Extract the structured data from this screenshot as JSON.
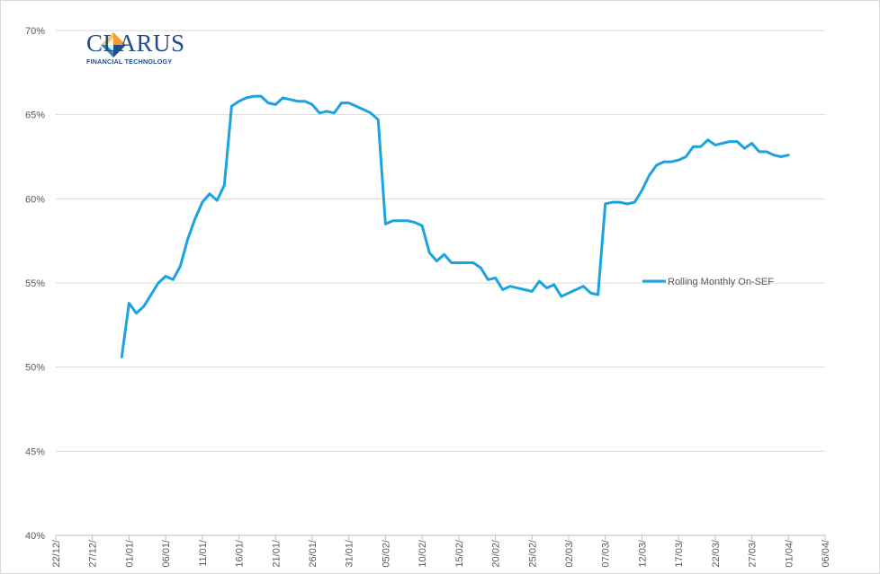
{
  "logo": {
    "name": "CLARUS",
    "tagline": "FINANCIAL TECHNOLOGY",
    "colors": {
      "blue": "#1f4e8c",
      "orange": "#f0a030",
      "teal": "#2e8fb0"
    }
  },
  "chart_data": {
    "type": "line",
    "title": "",
    "xlabel": "",
    "ylabel": "",
    "ylim": [
      0.4,
      0.7
    ],
    "y_ticks": [
      "40%",
      "45%",
      "50%",
      "55%",
      "60%",
      "65%",
      "70%"
    ],
    "y_tick_values": [
      0.4,
      0.45,
      0.5,
      0.55,
      0.6,
      0.65,
      0.7
    ],
    "x_tick_labels": [
      "22/12/",
      "27/12/",
      "01/01/",
      "06/01/",
      "11/01/",
      "16/01/",
      "21/01/",
      "26/01/",
      "31/01/",
      "05/02/",
      "10/02/",
      "15/02/",
      "20/02/",
      "25/02/",
      "02/03/",
      "07/03/",
      "12/03/",
      "17/03/",
      "22/03/",
      "27/03/",
      "01/04/",
      "06/04/"
    ],
    "x_tick_dates": [
      "2014-12-22",
      "2014-12-27",
      "2015-01-01",
      "2015-01-06",
      "2015-01-11",
      "2015-01-16",
      "2015-01-21",
      "2015-01-26",
      "2015-01-31",
      "2015-02-05",
      "2015-02-10",
      "2015-02-15",
      "2015-02-20",
      "2015-02-25",
      "2015-03-02",
      "2015-03-07",
      "2015-03-12",
      "2015-03-17",
      "2015-03-22",
      "2015-03-27",
      "2015-04-01",
      "2015-04-06"
    ],
    "grid": true,
    "legend_position": "right",
    "series": [
      {
        "name": "Rolling Monthly On-SEF",
        "color": "#1aa3e0",
        "points": [
          [
            "2014-12-31",
            0.506
          ],
          [
            "2015-01-01",
            0.538
          ],
          [
            "2015-01-02",
            0.532
          ],
          [
            "2015-01-03",
            0.536
          ],
          [
            "2015-01-04",
            0.543
          ],
          [
            "2015-01-05",
            0.55
          ],
          [
            "2015-01-06",
            0.554
          ],
          [
            "2015-01-07",
            0.552
          ],
          [
            "2015-01-08",
            0.56
          ],
          [
            "2015-01-09",
            0.576
          ],
          [
            "2015-01-10",
            0.588
          ],
          [
            "2015-01-11",
            0.598
          ],
          [
            "2015-01-12",
            0.603
          ],
          [
            "2015-01-13",
            0.599
          ],
          [
            "2015-01-14",
            0.608
          ],
          [
            "2015-01-15",
            0.655
          ],
          [
            "2015-01-16",
            0.658
          ],
          [
            "2015-01-17",
            0.66
          ],
          [
            "2015-01-18",
            0.661
          ],
          [
            "2015-01-19",
            0.661
          ],
          [
            "2015-01-20",
            0.657
          ],
          [
            "2015-01-21",
            0.656
          ],
          [
            "2015-01-22",
            0.66
          ],
          [
            "2015-01-23",
            0.659
          ],
          [
            "2015-01-24",
            0.658
          ],
          [
            "2015-01-25",
            0.658
          ],
          [
            "2015-01-26",
            0.656
          ],
          [
            "2015-01-27",
            0.651
          ],
          [
            "2015-01-28",
            0.652
          ],
          [
            "2015-01-29",
            0.651
          ],
          [
            "2015-01-30",
            0.657
          ],
          [
            "2015-01-31",
            0.657
          ],
          [
            "2015-02-01",
            0.655
          ],
          [
            "2015-02-02",
            0.653
          ],
          [
            "2015-02-03",
            0.651
          ],
          [
            "2015-02-04",
            0.647
          ],
          [
            "2015-02-05",
            0.585
          ],
          [
            "2015-02-06",
            0.587
          ],
          [
            "2015-02-07",
            0.587
          ],
          [
            "2015-02-08",
            0.587
          ],
          [
            "2015-02-09",
            0.586
          ],
          [
            "2015-02-10",
            0.584
          ],
          [
            "2015-02-11",
            0.568
          ],
          [
            "2015-02-12",
            0.563
          ],
          [
            "2015-02-13",
            0.567
          ],
          [
            "2015-02-14",
            0.562
          ],
          [
            "2015-02-15",
            0.562
          ],
          [
            "2015-02-16",
            0.562
          ],
          [
            "2015-02-17",
            0.562
          ],
          [
            "2015-02-18",
            0.559
          ],
          [
            "2015-02-19",
            0.552
          ],
          [
            "2015-02-20",
            0.553
          ],
          [
            "2015-02-21",
            0.546
          ],
          [
            "2015-02-22",
            0.548
          ],
          [
            "2015-02-23",
            0.547
          ],
          [
            "2015-02-24",
            0.546
          ],
          [
            "2015-02-25",
            0.545
          ],
          [
            "2015-02-26",
            0.551
          ],
          [
            "2015-02-27",
            0.547
          ],
          [
            "2015-02-28",
            0.549
          ],
          [
            "2015-03-01",
            0.542
          ],
          [
            "2015-03-02",
            0.544
          ],
          [
            "2015-03-03",
            0.546
          ],
          [
            "2015-03-04",
            0.548
          ],
          [
            "2015-03-05",
            0.544
          ],
          [
            "2015-03-06",
            0.543
          ],
          [
            "2015-03-07",
            0.597
          ],
          [
            "2015-03-08",
            0.598
          ],
          [
            "2015-03-09",
            0.598
          ],
          [
            "2015-03-10",
            0.597
          ],
          [
            "2015-03-11",
            0.598
          ],
          [
            "2015-03-12",
            0.605
          ],
          [
            "2015-03-13",
            0.614
          ],
          [
            "2015-03-14",
            0.62
          ],
          [
            "2015-03-15",
            0.622
          ],
          [
            "2015-03-16",
            0.622
          ],
          [
            "2015-03-17",
            0.623
          ],
          [
            "2015-03-18",
            0.625
          ],
          [
            "2015-03-19",
            0.631
          ],
          [
            "2015-03-20",
            0.631
          ],
          [
            "2015-03-21",
            0.635
          ],
          [
            "2015-03-22",
            0.632
          ],
          [
            "2015-03-23",
            0.633
          ],
          [
            "2015-03-24",
            0.634
          ],
          [
            "2015-03-25",
            0.634
          ],
          [
            "2015-03-26",
            0.63
          ],
          [
            "2015-03-27",
            0.633
          ],
          [
            "2015-03-28",
            0.628
          ],
          [
            "2015-03-29",
            0.628
          ],
          [
            "2015-03-30",
            0.626
          ],
          [
            "2015-03-31",
            0.625
          ],
          [
            "2015-04-01",
            0.626
          ]
        ]
      }
    ]
  }
}
